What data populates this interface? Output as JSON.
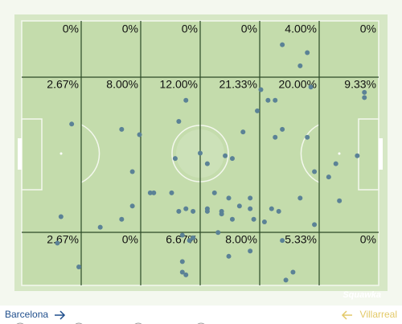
{
  "zones": {
    "rows": [
      [
        "0%",
        "0%",
        "0%",
        "0%",
        "4.00%",
        "0%"
      ],
      [
        "2.67%",
        "8.00%",
        "12.00%",
        "21.33%",
        "20.00%",
        "9.33%"
      ],
      [
        "2.67%",
        "0%",
        "6.67%",
        "8.00%",
        "5.33%",
        "0%"
      ]
    ]
  },
  "points": {
    "x": [
      73,
      80,
      78,
      81,
      96,
      96,
      67,
      71,
      69,
      66,
      46,
      14,
      28,
      33,
      44,
      62,
      73,
      71,
      80,
      57,
      59,
      52,
      50,
      43,
      88,
      94,
      86,
      82,
      31,
      36,
      37,
      42,
      31,
      28,
      22,
      11,
      44,
      46,
      48,
      52,
      52,
      56,
      56,
      54,
      58,
      61,
      64,
      64,
      59,
      65,
      70,
      72,
      78,
      89,
      82,
      68,
      45,
      48,
      55,
      73,
      64,
      58,
      45,
      46,
      45,
      16,
      10,
      74,
      76,
      47
    ],
    "y": [
      9,
      12,
      17,
      25,
      27,
      29,
      26,
      30,
      30,
      34,
      30,
      39,
      41,
      43,
      38,
      42,
      41,
      44,
      44,
      51,
      52,
      54,
      50,
      52,
      54,
      51,
      59,
      57,
      57,
      65,
      65,
      65,
      70,
      75,
      78,
      74,
      72,
      71,
      72,
      71,
      72,
      72,
      73,
      65,
      67,
      70,
      67,
      71,
      75,
      75,
      71,
      72,
      67,
      68,
      77,
      76,
      81,
      82,
      80,
      83,
      87,
      89,
      91,
      96,
      95,
      93,
      84,
      98,
      95,
      83
    ]
  },
  "watermark": "Squawka",
  "teams": {
    "home": "Barcelona",
    "away": "Villarreal"
  }
}
